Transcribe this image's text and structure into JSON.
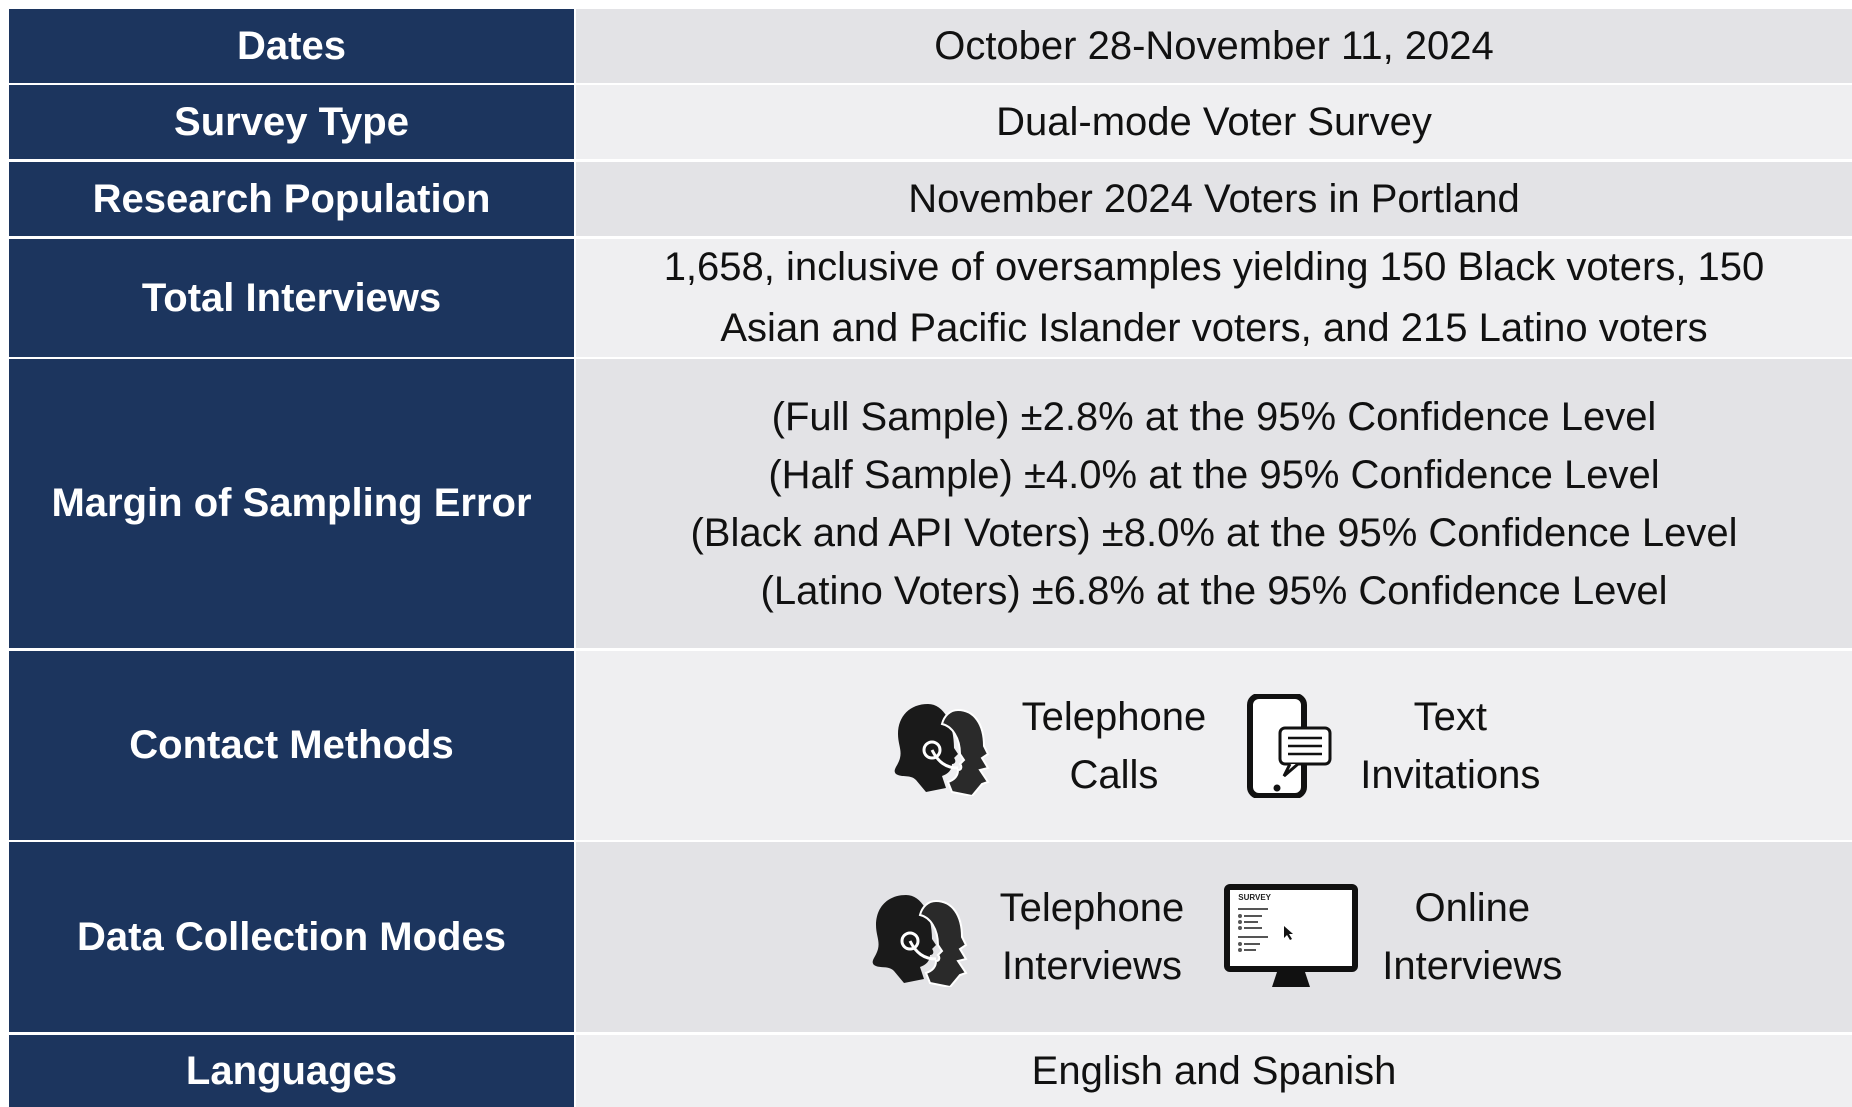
{
  "rows": [
    {
      "label": "Dates",
      "value": [
        "October 28-November 11, 2024"
      ]
    },
    {
      "label": "Survey Type",
      "value": [
        "Dual-mode Voter Survey"
      ]
    },
    {
      "label": "Research Population",
      "value": [
        "November 2024 Voters in Portland"
      ]
    },
    {
      "label": "Total Interviews",
      "value": [
        "1,658, inclusive of oversamples yielding 150 Black voters, 150",
        "Asian and Pacific Islander voters, and 215 Latino voters"
      ]
    },
    {
      "label": "Margin of Sampling Error",
      "value": [
        "(Full Sample) ±2.8% at the 95% Confidence Level",
        "(Half Sample) ±4.0% at the 95% Confidence Level",
        "(Black and API Voters) ±8.0% at the 95% Confidence Level",
        "(Latino Voters) ±6.8% at the 95% Confidence Level"
      ]
    },
    {
      "label": "Contact Methods",
      "methods": [
        {
          "icon": "headset",
          "text": [
            "Telephone",
            "Calls"
          ]
        },
        {
          "icon": "phone",
          "text": [
            "Text",
            "Invitations"
          ]
        }
      ]
    },
    {
      "label": "Data Collection Modes",
      "methods": [
        {
          "icon": "headset",
          "text": [
            "Telephone",
            "Interviews"
          ]
        },
        {
          "icon": "monitor",
          "screen_label": "SURVEY",
          "text": [
            "Online",
            "Interviews"
          ]
        }
      ]
    },
    {
      "label": "Languages",
      "value": [
        "English and Spanish"
      ]
    }
  ]
}
